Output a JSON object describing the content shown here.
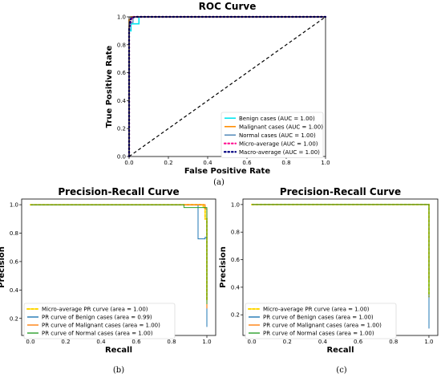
{
  "chart_data": [
    {
      "id": "a",
      "type": "line",
      "title": "ROC Curve",
      "xlabel": "False Positive Rate",
      "ylabel": "True Positive Rate",
      "xlim": [
        0,
        1
      ],
      "ylim": [
        0,
        1
      ],
      "xticks": [
        "0.0",
        "0.2",
        "0.4",
        "0.6",
        "0.8",
        "1.0"
      ],
      "yticks": [
        "0.0",
        "0.2",
        "0.4",
        "0.6",
        "0.8",
        "1.0"
      ],
      "xtick_values": [
        0,
        0.2,
        0.4,
        0.6,
        0.8,
        1.0
      ],
      "ytick_values": [
        0,
        0.2,
        0.4,
        0.6,
        0.8,
        1.0
      ],
      "grid": false,
      "legend_position": "lower-right",
      "caption": "(a)",
      "series": [
        {
          "name": "Benign cases (AUC = 1.00)",
          "color": "#00e5ee",
          "width": 1.6,
          "dash": "",
          "x": [
            0,
            0,
            0.01,
            0.01,
            0.05,
            0.05,
            1
          ],
          "y": [
            0,
            0.9,
            0.9,
            0.95,
            0.95,
            1,
            1
          ]
        },
        {
          "name": "Malignant cases (AUC = 1.00)",
          "color": "#ff8c00",
          "width": 1.6,
          "dash": "",
          "x": [
            0,
            0,
            0.01,
            0.01,
            1
          ],
          "y": [
            0,
            0.98,
            0.98,
            1,
            1
          ]
        },
        {
          "name": "Normal cases (AUC = 1.00)",
          "color": "#4682b4",
          "width": 1.2,
          "dash": "",
          "x": [
            0,
            0,
            0.02,
            0.02,
            1
          ],
          "y": [
            0,
            0.96,
            0.96,
            1,
            1
          ]
        },
        {
          "name": "Micro-average (AUC = 1.00)",
          "color": "#ff1493",
          "width": 2.2,
          "dash": "1.5,3",
          "x": [
            0,
            0,
            0.01,
            0.02,
            1
          ],
          "y": [
            0,
            0.9,
            0.98,
            1,
            1
          ]
        },
        {
          "name": "Macro-average (AUC = 1.00)",
          "color": "#000080",
          "width": 2.2,
          "dash": "1.5,3",
          "x": [
            0,
            0,
            0.01,
            0.03,
            1
          ],
          "y": [
            0,
            0.92,
            0.99,
            1,
            1
          ]
        }
      ],
      "reference_line": {
        "x": [
          0,
          1
        ],
        "y": [
          0,
          1
        ],
        "color": "#000000",
        "dash": "4,3"
      }
    },
    {
      "id": "b",
      "type": "line",
      "title": "Precision-Recall Curve",
      "xlabel": "Recall",
      "ylabel": "Precision",
      "xlim": [
        -0.05,
        1.05
      ],
      "ylim": [
        0.08,
        1.04
      ],
      "xticks": [
        "0.0",
        "0.2",
        "0.4",
        "0.6",
        "0.8",
        "1.0"
      ],
      "yticks": [
        "0.2",
        "0.4",
        "0.6",
        "0.8",
        "1.0"
      ],
      "xtick_values": [
        0,
        0.2,
        0.4,
        0.6,
        0.8,
        1.0
      ],
      "ytick_values": [
        0.2,
        0.4,
        0.6,
        0.8,
        1.0
      ],
      "grid": false,
      "legend_position": "lower-left",
      "caption": "(b)",
      "series": [
        {
          "name": "Micro-average PR curve (area = 1.00)",
          "color": "#ffd700",
          "width": 2.0,
          "dash": "3,2",
          "x": [
            0,
            0.98,
            0.98,
            0.99,
            0.99,
            1,
            1
          ],
          "y": [
            1,
            1,
            0.98,
            0.98,
            0.9,
            0.9,
            0.33
          ]
        },
        {
          "name": "PR curve of Benign cases (area = 0.99)",
          "color": "#1f77b4",
          "width": 1.0,
          "dash": "",
          "x": [
            0,
            0.95,
            0.95,
            0.99,
            0.99,
            1,
            1
          ],
          "y": [
            1,
            1,
            0.76,
            0.76,
            0.77,
            0.77,
            0.14
          ]
        },
        {
          "name": "PR curve of Malignant cases (area = 1.00)",
          "color": "#ff7f0e",
          "width": 1.2,
          "dash": "",
          "x": [
            0,
            0.99,
            0.99,
            1,
            1
          ],
          "y": [
            1,
            1,
            0.97,
            0.97,
            0.27
          ]
        },
        {
          "name": "PR curve of Normal cases (area = 1.00)",
          "color": "#2ca02c",
          "width": 1.0,
          "dash": "",
          "x": [
            0,
            0.87,
            0.87,
            1,
            1
          ],
          "y": [
            1,
            1,
            0.98,
            0.98,
            0.3
          ]
        }
      ]
    },
    {
      "id": "c",
      "type": "line",
      "title": "Precision-Recall Curve",
      "xlabel": "Recall",
      "ylabel": "Precision",
      "xlim": [
        -0.05,
        1.05
      ],
      "ylim": [
        0.05,
        1.04
      ],
      "xticks": [
        "0.0",
        "0.2",
        "0.4",
        "0.6",
        "0.8",
        "1.0"
      ],
      "yticks": [
        "0.2",
        "0.4",
        "0.6",
        "0.8",
        "1.0"
      ],
      "xtick_values": [
        0,
        0.2,
        0.4,
        0.6,
        0.8,
        1.0
      ],
      "ytick_values": [
        0.2,
        0.4,
        0.6,
        0.8,
        1.0
      ],
      "grid": false,
      "legend_position": "lower-left",
      "caption": "(c)",
      "series": [
        {
          "name": "Micro-average PR curve (area = 1.00)",
          "color": "#ffd700",
          "width": 2.0,
          "dash": "3,2",
          "x": [
            0,
            1,
            1
          ],
          "y": [
            1,
            1,
            0.33
          ]
        },
        {
          "name": "PR curve of Benign cases (area = 1.00)",
          "color": "#1f77b4",
          "width": 1.0,
          "dash": "",
          "x": [
            0,
            1,
            1
          ],
          "y": [
            1,
            1,
            0.1
          ]
        },
        {
          "name": "PR curve of Malignant cases (area = 1.00)",
          "color": "#ff7f0e",
          "width": 1.2,
          "dash": "",
          "x": [
            0,
            1,
            1
          ],
          "y": [
            1,
            1,
            0.45
          ]
        },
        {
          "name": "PR curve of Normal cases (area = 1.00)",
          "color": "#2ca02c",
          "width": 1.0,
          "dash": "",
          "x": [
            0,
            1,
            1
          ],
          "y": [
            1,
            1,
            0.35
          ]
        }
      ]
    }
  ]
}
